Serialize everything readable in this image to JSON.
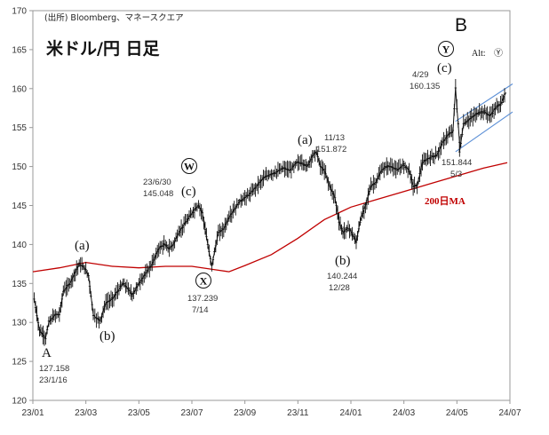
{
  "chart_data": {
    "type": "line",
    "title": "米ドル/円 日足",
    "source": "(出所) Bloomberg、マネースクエア",
    "ylim": [
      120,
      170
    ],
    "yticks": [
      120,
      125,
      130,
      135,
      140,
      145,
      150,
      155,
      160,
      165,
      170
    ],
    "xticks": [
      "23/01",
      "23/03",
      "23/05",
      "23/07",
      "23/09",
      "23/11",
      "24/01",
      "24/03",
      "24/05",
      "24/07"
    ],
    "xtick_months": [
      0,
      2,
      4,
      6,
      8,
      10,
      12,
      14,
      16,
      18
    ],
    "price_path": [
      [
        0.05,
        133
      ],
      [
        0.25,
        129
      ],
      [
        0.48,
        128
      ],
      [
        0.6,
        130
      ],
      [
        0.85,
        131
      ],
      [
        1.0,
        131
      ],
      [
        1.15,
        134
      ],
      [
        1.4,
        135
      ],
      [
        1.6,
        136.5
      ],
      [
        1.75,
        137.5
      ],
      [
        1.95,
        137
      ],
      [
        2.1,
        136
      ],
      [
        2.28,
        131
      ],
      [
        2.4,
        130.5
      ],
      [
        2.55,
        130.3
      ],
      [
        2.75,
        132.5
      ],
      [
        3.0,
        133
      ],
      [
        3.2,
        134
      ],
      [
        3.4,
        135
      ],
      [
        3.55,
        134.5
      ],
      [
        3.75,
        133.5
      ],
      [
        4.0,
        135
      ],
      [
        4.3,
        136.5
      ],
      [
        4.5,
        137.5
      ],
      [
        4.75,
        139.5
      ],
      [
        4.95,
        140
      ],
      [
        5.15,
        139.5
      ],
      [
        5.3,
        140
      ],
      [
        5.5,
        141.5
      ],
      [
        5.7,
        142.5
      ],
      [
        5.9,
        143.5
      ],
      [
        6.1,
        144.5
      ],
      [
        6.25,
        145.048
      ],
      [
        6.4,
        144
      ],
      [
        6.55,
        141
      ],
      [
        6.65,
        139
      ],
      [
        6.75,
        137.239
      ],
      [
        6.85,
        139
      ],
      [
        7.0,
        141.5
      ],
      [
        7.2,
        142
      ],
      [
        7.4,
        143.5
      ],
      [
        7.6,
        144.5
      ],
      [
        7.8,
        145.5
      ],
      [
        8.0,
        146
      ],
      [
        8.2,
        146.5
      ],
      [
        8.45,
        147.5
      ],
      [
        8.7,
        148.5
      ],
      [
        8.95,
        149
      ],
      [
        9.2,
        149.3
      ],
      [
        9.45,
        149.8
      ],
      [
        9.7,
        149.5
      ],
      [
        9.95,
        150.5
      ],
      [
        10.15,
        150.5
      ],
      [
        10.35,
        150
      ],
      [
        10.55,
        151.4
      ],
      [
        10.7,
        151.872
      ],
      [
        10.85,
        150
      ],
      [
        11.0,
        149.5
      ],
      [
        11.2,
        147.5
      ],
      [
        11.4,
        146
      ],
      [
        11.55,
        143
      ],
      [
        11.7,
        141.5
      ],
      [
        11.85,
        142
      ],
      [
        11.95,
        142
      ],
      [
        12.1,
        141
      ],
      [
        12.2,
        140.244
      ],
      [
        12.35,
        143
      ],
      [
        12.55,
        145
      ],
      [
        12.75,
        147.5
      ],
      [
        12.95,
        148
      ],
      [
        13.15,
        149.5
      ],
      [
        13.35,
        150
      ],
      [
        13.55,
        150
      ],
      [
        13.75,
        149.5
      ],
      [
        13.9,
        150
      ],
      [
        14.0,
        150.2
      ],
      [
        14.2,
        149.5
      ],
      [
        14.35,
        147.5
      ],
      [
        14.5,
        147.5
      ],
      [
        14.7,
        150.5
      ],
      [
        14.9,
        151
      ],
      [
        15.1,
        151.3
      ],
      [
        15.25,
        151.5
      ],
      [
        15.45,
        153
      ],
      [
        15.65,
        154
      ],
      [
        15.85,
        154.5
      ],
      [
        15.95,
        160.135
      ],
      [
        16.0,
        157.5
      ],
      [
        16.05,
        155.5
      ],
      [
        16.1,
        153
      ],
      [
        16.1,
        151.844
      ],
      [
        16.25,
        155.5
      ],
      [
        16.45,
        156
      ],
      [
        16.65,
        156.5
      ],
      [
        16.85,
        157
      ],
      [
        17.05,
        157
      ],
      [
        17.25,
        156.5
      ],
      [
        17.45,
        157.5
      ],
      [
        17.65,
        158
      ],
      [
        17.85,
        159.5
      ]
    ],
    "ma_path": [
      [
        0.0,
        136.5
      ],
      [
        1.0,
        137
      ],
      [
        2.0,
        137.7
      ],
      [
        3.0,
        137.2
      ],
      [
        4.0,
        137
      ],
      [
        5.0,
        137.2
      ],
      [
        6.0,
        137.2
      ],
      [
        7.0,
        136.7
      ],
      [
        7.4,
        136.5
      ],
      [
        8.0,
        137.3
      ],
      [
        9.0,
        138.7
      ],
      [
        10.0,
        140.8
      ],
      [
        11.0,
        143.2
      ],
      [
        12.0,
        144.8
      ],
      [
        13.0,
        145.8
      ],
      [
        14.0,
        146.8
      ],
      [
        15.0,
        147.8
      ],
      [
        16.0,
        148.8
      ],
      [
        17.0,
        149.8
      ],
      [
        17.9,
        150.5
      ]
    ],
    "channel_upper": [
      [
        15.95,
        155.8
      ],
      [
        18.1,
        160.6
      ]
    ],
    "channel_lower": [
      [
        15.95,
        151.9
      ],
      [
        18.1,
        157.0
      ]
    ],
    "series": [
      {
        "name": "200日MA",
        "color": "#c00000"
      }
    ],
    "annotations": [
      {
        "label": "127.158",
        "sub": "23/1/16"
      },
      {
        "label": "23/6/30",
        "sub": "145.048"
      },
      {
        "label": "137.239",
        "sub": "7/14"
      },
      {
        "label": "11/13",
        "sub": "151.872"
      },
      {
        "label": "140.244",
        "sub": "12/28"
      },
      {
        "label": "4/29",
        "sub": "160.135"
      },
      {
        "label": "151.844",
        "sub": "5/3"
      }
    ],
    "waves": [
      "A",
      "(a)",
      "(b)",
      "(c)",
      "(a)",
      "(b)",
      "(c)",
      "B"
    ],
    "circled": [
      "W",
      "X",
      "Y"
    ],
    "alt_label": "Alt:",
    "alt_symbol": "Ⓨ",
    "colors": {
      "price": "#111111",
      "ma": "#c00000",
      "channel": "#5b8fd6",
      "axis": "#999999"
    }
  }
}
